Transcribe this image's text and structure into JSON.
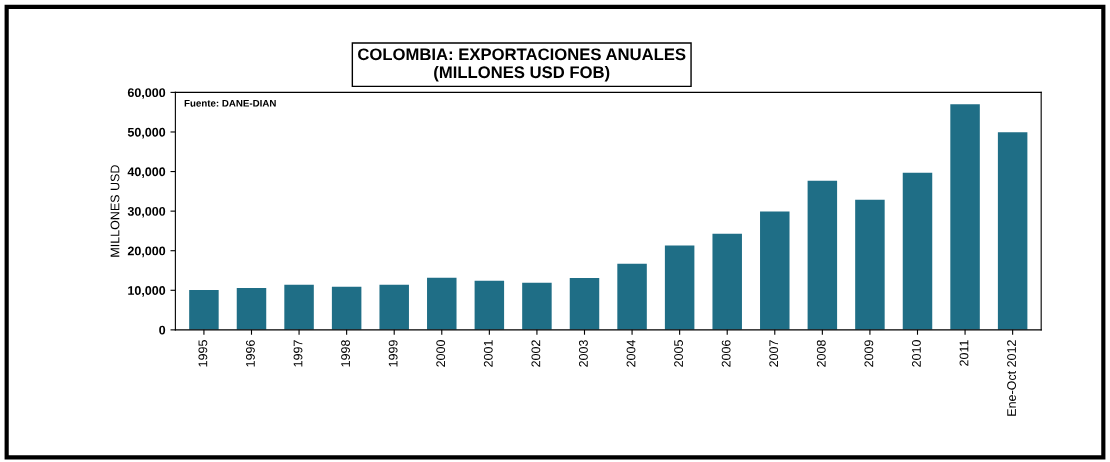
{
  "chart_data": {
    "type": "bar",
    "title": "COLOMBIA: EXPORTACIONES ANUALES\n(MILLONES USD FOB)",
    "ylabel": "MILLONES USD",
    "categories": [
      "1995",
      "1996",
      "1997",
      "1998",
      "1999",
      "2000",
      "2001",
      "2002",
      "2003",
      "2004",
      "2005",
      "2006",
      "2007",
      "2008",
      "2009",
      "2010",
      "2011",
      "Ene-Oct 2012"
    ],
    "values": [
      10100,
      10600,
      11400,
      10900,
      11400,
      13200,
      12400,
      11900,
      13100,
      16700,
      21300,
      24300,
      29900,
      37700,
      32900,
      39700,
      57000,
      49900
    ],
    "color": "#1f6e86",
    "ylim": [
      0,
      60000
    ],
    "yticks": [
      0,
      {
        "value": 10000,
        "label": "10,000"
      },
      {
        "value": 20000,
        "label": "20,000"
      },
      {
        "value": 30000,
        "label": "30,000"
      },
      {
        "value": 40000,
        "label": "40,000"
      },
      {
        "value": 50000,
        "label": "50,000"
      },
      {
        "value": 60000,
        "label": "60,000"
      }
    ],
    "annotations": [
      "Fuente: DANE-DIAN"
    ],
    "grid": false,
    "legend": false
  }
}
